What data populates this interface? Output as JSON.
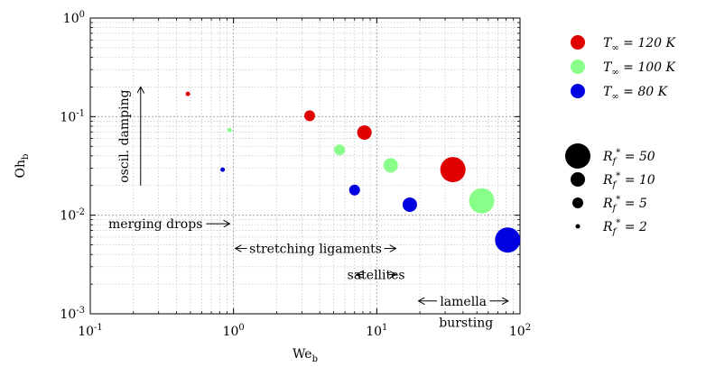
{
  "chart_data": {
    "type": "scatter",
    "xscale": "log",
    "yscale": "log",
    "xlabel": "We_b",
    "ylabel": "Oh_b",
    "xlim": [
      0.1,
      100
    ],
    "ylim": [
      0.001,
      1
    ],
    "x_ticks": [
      0.1,
      1,
      10,
      100
    ],
    "x_tick_labels": [
      "10^{-1}",
      "10^{0}",
      "10^{1}",
      "10^{2}"
    ],
    "y_ticks": [
      0.001,
      0.01,
      0.1,
      1
    ],
    "y_tick_labels": [
      "10^{-3}",
      "10^{-2}",
      "10^{-1}",
      "10^{0}"
    ],
    "grid": true,
    "legend_position": "right",
    "series": [
      {
        "name": "T_∞ = 120 K",
        "color": "#e00000",
        "points": [
          {
            "x": 0.48,
            "y": 0.17,
            "Rf": 2
          },
          {
            "x": 3.4,
            "y": 0.102,
            "Rf": 5
          },
          {
            "x": 8.2,
            "y": 0.069,
            "Rf": 10
          },
          {
            "x": 34,
            "y": 0.029,
            "Rf": 50
          }
        ]
      },
      {
        "name": "T_∞ = 100 K",
        "color": "#88ff88",
        "points": [
          {
            "x": 0.94,
            "y": 0.073,
            "Rf": 2
          },
          {
            "x": 5.5,
            "y": 0.046,
            "Rf": 5
          },
          {
            "x": 12.5,
            "y": 0.032,
            "Rf": 10
          },
          {
            "x": 54,
            "y": 0.014,
            "Rf": 50
          }
        ]
      },
      {
        "name": "T_∞ = 80 K",
        "color": "#0000e0",
        "points": [
          {
            "x": 0.84,
            "y": 0.029,
            "Rf": 2
          },
          {
            "x": 7.0,
            "y": 0.018,
            "Rf": 5
          },
          {
            "x": 17,
            "y": 0.0128,
            "Rf": 10
          },
          {
            "x": 82,
            "y": 0.0056,
            "Rf": 50
          }
        ]
      }
    ],
    "size_legend": [
      {
        "label": "R_f^* = 50",
        "Rf": 50
      },
      {
        "label": "R_f^* = 10",
        "Rf": 10
      },
      {
        "label": "R_f^* = 5",
        "Rf": 5
      },
      {
        "label": "R_f^* = 2",
        "Rf": 2
      }
    ],
    "annotations": [
      {
        "text": "oscil. damping",
        "type": "vertical-arrow-up",
        "x": 0.2,
        "y_from": 0.02,
        "y_to": 0.2
      },
      {
        "text": "merging drops",
        "type": "arrow-right",
        "x_end": 0.94,
        "y": 0.0082
      },
      {
        "text": "stretching ligaments",
        "type": "range",
        "x_from": 1.0,
        "x_to": 14,
        "y": 0.0046
      },
      {
        "text": "satellites",
        "type": "range",
        "x_from": 7.0,
        "x_to": 14,
        "y": 0.0025
      },
      {
        "text": "lamella",
        "type": "range",
        "x_from": 19,
        "x_to": 85,
        "y": 0.00135
      },
      {
        "text": "bursting",
        "type": "label",
        "x": 42,
        "y": 0.00082
      }
    ]
  }
}
